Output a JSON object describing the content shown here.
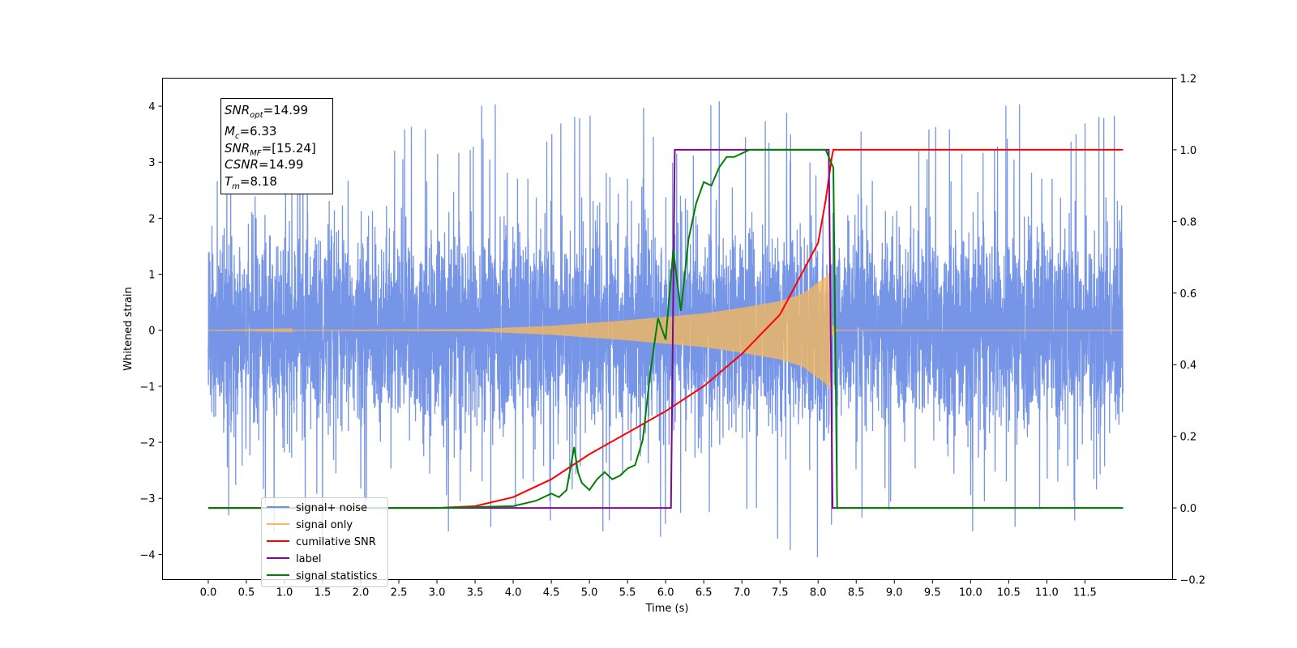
{
  "chart_data": {
    "type": "line",
    "title": "",
    "xlabel": "Time (s)",
    "ylabel_left": "Whitened strain",
    "ylabel_right": "",
    "xlim": [
      -0.6,
      12.65
    ],
    "ylim_left": [
      -4.45,
      4.5
    ],
    "ylim_right": [
      -0.2,
      1.2
    ],
    "x_ticks": [
      "0.0",
      "0.5",
      "1.0",
      "1.5",
      "2.0",
      "2.5",
      "3.0",
      "3.5",
      "4.0",
      "4.5",
      "5.0",
      "5.5",
      "6.0",
      "6.5",
      "7.0",
      "7.5",
      "8.0",
      "8.5",
      "9.0",
      "9.5",
      "10.0",
      "10.5",
      "11.0",
      "11.5"
    ],
    "y_ticks_left": [
      "4",
      "3",
      "2",
      "1",
      "0",
      "−1",
      "−2",
      "−3",
      "−4"
    ],
    "y_ticks_right": [
      "1.2",
      "1.0",
      "0.8",
      "0.6",
      "0.4",
      "0.2",
      "0.0",
      "−0.2"
    ],
    "grid": false,
    "legend_position": "lower-left",
    "annotation": {
      "lines": [
        {
          "main": "SNR",
          "sub": "opt",
          "rest": "=14.99"
        },
        {
          "main": "M",
          "sub": "c",
          "rest": "=6.33"
        },
        {
          "main": "SNR",
          "sub": "MF",
          "rest": "=[15.24]"
        },
        {
          "main": "CSNR",
          "sub": "",
          "rest": "=14.99"
        },
        {
          "main": "T",
          "sub": "m",
          "rest": "=8.18"
        }
      ]
    },
    "series": [
      {
        "name": "signal+ noise",
        "color": "#6f8fe6",
        "axis": "left",
        "kind": "noise",
        "x_range": [
          0.0,
          12.0
        ],
        "envelope_typical": 1.7,
        "spike_max": 4.1,
        "spike_min": -4.05
      },
      {
        "name": "signal only",
        "color": "#f4b860",
        "axis": "left",
        "kind": "chirp",
        "x_range": [
          0.0,
          12.0
        ],
        "merger_time": 8.18,
        "envelope_points": [
          [
            0.0,
            0.0
          ],
          [
            3.5,
            0.02
          ],
          [
            4.5,
            0.08
          ],
          [
            5.5,
            0.18
          ],
          [
            6.5,
            0.3
          ],
          [
            7.0,
            0.4
          ],
          [
            7.5,
            0.52
          ],
          [
            7.8,
            0.65
          ],
          [
            8.0,
            0.85
          ],
          [
            8.1,
            0.95
          ],
          [
            8.15,
            1.05
          ],
          [
            8.18,
            0.1
          ],
          [
            8.25,
            0.0
          ],
          [
            12.0,
            0.0
          ]
        ]
      },
      {
        "name": "cumilative SNR",
        "color": "#ff0000",
        "axis": "right",
        "x": [
          0.0,
          1.0,
          2.0,
          3.0,
          3.5,
          4.0,
          4.5,
          5.0,
          5.5,
          6.0,
          6.5,
          7.0,
          7.5,
          8.0,
          8.1,
          8.18,
          8.2,
          8.5,
          9.0,
          10.0,
          11.0,
          12.0
        ],
        "values": [
          0.0,
          0.0,
          0.0,
          0.0,
          0.005,
          0.03,
          0.08,
          0.15,
          0.21,
          0.27,
          0.34,
          0.43,
          0.54,
          0.74,
          0.86,
          0.98,
          1.0,
          1.0,
          1.0,
          1.0,
          1.0,
          1.0
        ]
      },
      {
        "name": "label",
        "color": "#7b0a8c",
        "axis": "right",
        "x": [
          0.0,
          6.07,
          6.12,
          7.0,
          8.14,
          8.19,
          12.0
        ],
        "values": [
          0.0,
          0.0,
          1.0,
          1.0,
          1.0,
          0.0,
          0.0
        ]
      },
      {
        "name": "signal statistics",
        "color": "#008000",
        "axis": "right",
        "x": [
          0.0,
          3.0,
          4.0,
          4.3,
          4.5,
          4.6,
          4.7,
          4.8,
          4.85,
          4.9,
          5.0,
          5.1,
          5.2,
          5.3,
          5.4,
          5.5,
          5.6,
          5.7,
          5.8,
          5.9,
          6.0,
          6.1,
          6.2,
          6.3,
          6.4,
          6.5,
          6.6,
          6.7,
          6.8,
          6.9,
          7.0,
          7.1,
          7.2,
          8.0,
          8.1,
          8.2,
          8.25,
          12.0
        ],
        "values": [
          0.0,
          0.0,
          0.005,
          0.02,
          0.04,
          0.03,
          0.05,
          0.17,
          0.1,
          0.07,
          0.05,
          0.08,
          0.1,
          0.08,
          0.09,
          0.11,
          0.12,
          0.19,
          0.38,
          0.53,
          0.47,
          0.72,
          0.55,
          0.75,
          0.85,
          0.91,
          0.9,
          0.95,
          0.98,
          0.98,
          0.99,
          1.0,
          1.0,
          1.0,
          1.0,
          0.95,
          0.0,
          0.0
        ]
      }
    ]
  }
}
